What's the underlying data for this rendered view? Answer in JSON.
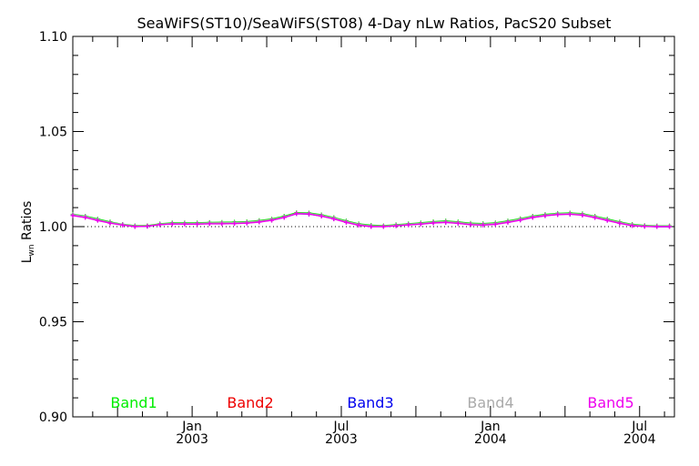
{
  "chart_data": {
    "type": "line",
    "title": "SeaWiFS(ST10)/SeaWiFS(ST08) 4-Day nLw Ratios, PacS20 Subset",
    "ylabel_main": "L",
    "ylabel_sub": "wn",
    "ylabel_rest": " Ratios",
    "ylim": [
      0.9,
      1.1
    ],
    "yticks": [
      "0.90",
      "0.95",
      "1.00",
      "1.05",
      "1.10"
    ],
    "xlim_months": [
      -4.8,
      19.4
    ],
    "xticks": [
      {
        "month": 0,
        "top": "Jan",
        "bottom": "2003"
      },
      {
        "month": 6,
        "top": "Jul",
        "bottom": "2003"
      },
      {
        "month": 12,
        "top": "Jan",
        "bottom": "2004"
      },
      {
        "month": 18,
        "top": "Jul",
        "bottom": "2004"
      }
    ],
    "reference_line": 1.0,
    "legend_position": "bottom",
    "x_months": [
      -4.8,
      -4.3,
      -3.8,
      -3.3,
      -2.8,
      -2.3,
      -1.8,
      -1.3,
      -0.8,
      -0.3,
      0.2,
      0.7,
      1.2,
      1.7,
      2.2,
      2.7,
      3.2,
      3.7,
      4.2,
      4.7,
      5.2,
      5.7,
      6.2,
      6.7,
      7.2,
      7.7,
      8.2,
      8.7,
      9.2,
      9.7,
      10.2,
      10.7,
      11.2,
      11.7,
      12.2,
      12.7,
      13.2,
      13.7,
      14.2,
      14.7,
      15.2,
      15.7,
      16.2,
      16.7,
      17.2,
      17.7,
      18.2,
      18.7,
      19.2
    ],
    "series": [
      {
        "name": "Band1",
        "color": "#00ee00",
        "values": [
          1.0065,
          1.0055,
          1.004,
          1.0025,
          1.0012,
          1.0005,
          1.0005,
          1.0015,
          1.002,
          1.002,
          1.002,
          1.0022,
          1.0023,
          1.0024,
          1.0026,
          1.0032,
          1.004,
          1.0055,
          1.0073,
          1.0072,
          1.0062,
          1.0048,
          1.003,
          1.0015,
          1.0007,
          1.0005,
          1.001,
          1.0015,
          1.002,
          1.0026,
          1.003,
          1.0025,
          1.0018,
          1.0016,
          1.002,
          1.003,
          1.0042,
          1.0055,
          1.0064,
          1.007,
          1.0072,
          1.0068,
          1.0055,
          1.004,
          1.0025,
          1.0012,
          1.0006,
          1.0004,
          1.0004
        ]
      },
      {
        "name": "Band2",
        "color": "#ee0000",
        "values": [
          1.006,
          1.005,
          1.0035,
          1.002,
          1.001,
          1.0002,
          1.0003,
          1.0012,
          1.0016,
          1.0016,
          1.0016,
          1.0018,
          1.0019,
          1.002,
          1.0022,
          1.0028,
          1.0036,
          1.005,
          1.007,
          1.0068,
          1.0058,
          1.0044,
          1.0026,
          1.0011,
          1.0003,
          1.0002,
          1.0006,
          1.0011,
          1.0016,
          1.0022,
          1.0026,
          1.0021,
          1.0014,
          1.0012,
          1.0016,
          1.0026,
          1.0038,
          1.0051,
          1.006,
          1.0066,
          1.0068,
          1.0064,
          1.0051,
          1.0036,
          1.0021,
          1.0008,
          1.0003,
          1.0001,
          1.0001
        ]
      },
      {
        "name": "Band3",
        "color": "#0000ee",
        "values": [
          1.0062,
          1.0052,
          1.0036,
          1.0021,
          1.001,
          1.0001,
          1.0002,
          1.0011,
          1.0015,
          1.0015,
          1.0015,
          1.0017,
          1.0017,
          1.0018,
          1.002,
          1.0026,
          1.0034,
          1.0049,
          1.0068,
          1.0066,
          1.0056,
          1.0042,
          1.0024,
          1.0009,
          1.0001,
          1.0001,
          1.0005,
          1.001,
          1.0014,
          1.002,
          1.0023,
          1.0018,
          1.0011,
          1.001,
          1.0014,
          1.0024,
          1.0036,
          1.0049,
          1.0058,
          1.0064,
          1.0066,
          1.0062,
          1.0049,
          1.0034,
          1.0019,
          1.0006,
          1.0002,
          1.0,
          1.0
        ]
      },
      {
        "name": "Band4",
        "color": "#aaaaaa",
        "values": [
          1.0063,
          1.0053,
          1.0037,
          1.0022,
          1.0011,
          1.0003,
          1.0003,
          1.0013,
          1.0017,
          1.0017,
          1.0017,
          1.0019,
          1.002,
          1.0021,
          1.0023,
          1.0029,
          1.0037,
          1.0051,
          1.007,
          1.0069,
          1.0059,
          1.0045,
          1.0027,
          1.0012,
          1.0004,
          1.0003,
          1.0007,
          1.0012,
          1.0017,
          1.0023,
          1.0027,
          1.0022,
          1.0015,
          1.0013,
          1.0017,
          1.0027,
          1.0039,
          1.0052,
          1.0061,
          1.0067,
          1.0069,
          1.0065,
          1.0052,
          1.0037,
          1.0022,
          1.0009,
          1.0004,
          1.0002,
          1.0002
        ]
      },
      {
        "name": "Band5",
        "color": "#ee00ee",
        "values": [
          1.0058,
          1.0048,
          1.0032,
          1.0018,
          1.0008,
          1.0,
          1.0002,
          1.001,
          1.0014,
          1.0013,
          1.0013,
          1.0015,
          1.0015,
          1.0016,
          1.0018,
          1.0024,
          1.0033,
          1.0048,
          1.0068,
          1.0066,
          1.0055,
          1.004,
          1.0022,
          1.0007,
          1.0,
          1.0,
          1.0004,
          1.0009,
          1.0013,
          1.0019,
          1.0022,
          1.0017,
          1.001,
          1.0008,
          1.0012,
          1.0022,
          1.0034,
          1.0048,
          1.0057,
          1.0063,
          1.0065,
          1.006,
          1.0047,
          1.0032,
          1.0017,
          1.0005,
          1.0001,
          1.0,
          1.0
        ]
      }
    ]
  }
}
